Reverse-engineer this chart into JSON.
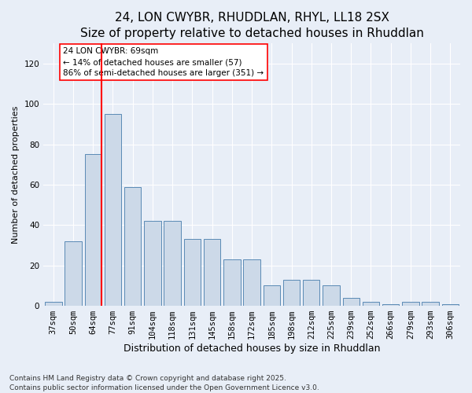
{
  "title": "24, LON CWYBR, RHUDDLAN, RHYL, LL18 2SX",
  "subtitle": "Size of property relative to detached houses in Rhuddlan",
  "xlabel": "Distribution of detached houses by size in Rhuddlan",
  "ylabel": "Number of detached properties",
  "categories": [
    "37sqm",
    "50sqm",
    "64sqm",
    "77sqm",
    "91sqm",
    "104sqm",
    "118sqm",
    "131sqm",
    "145sqm",
    "158sqm",
    "172sqm",
    "185sqm",
    "198sqm",
    "212sqm",
    "225sqm",
    "239sqm",
    "252sqm",
    "266sqm",
    "279sqm",
    "293sqm",
    "306sqm"
  ],
  "values": [
    2,
    32,
    75,
    95,
    59,
    42,
    42,
    33,
    33,
    23,
    23,
    10,
    13,
    13,
    10,
    4,
    2,
    1,
    2,
    2,
    1
  ],
  "bar_color": "#ccd9e8",
  "bar_edge_color": "#5a8ab5",
  "vline_color": "red",
  "annotation_text": "24 LON CWYBR: 69sqm\n← 14% of detached houses are smaller (57)\n86% of semi-detached houses are larger (351) →",
  "annotation_box_color": "white",
  "annotation_box_edge": "red",
  "ylim": [
    0,
    130
  ],
  "yticks": [
    0,
    20,
    40,
    60,
    80,
    100,
    120
  ],
  "background_color": "#e8eef7",
  "footer": "Contains HM Land Registry data © Crown copyright and database right 2025.\nContains public sector information licensed under the Open Government Licence v3.0.",
  "title_fontsize": 11,
  "xlabel_fontsize": 9,
  "ylabel_fontsize": 8,
  "tick_fontsize": 7.5,
  "footer_fontsize": 6.5,
  "annotation_fontsize": 7.5
}
